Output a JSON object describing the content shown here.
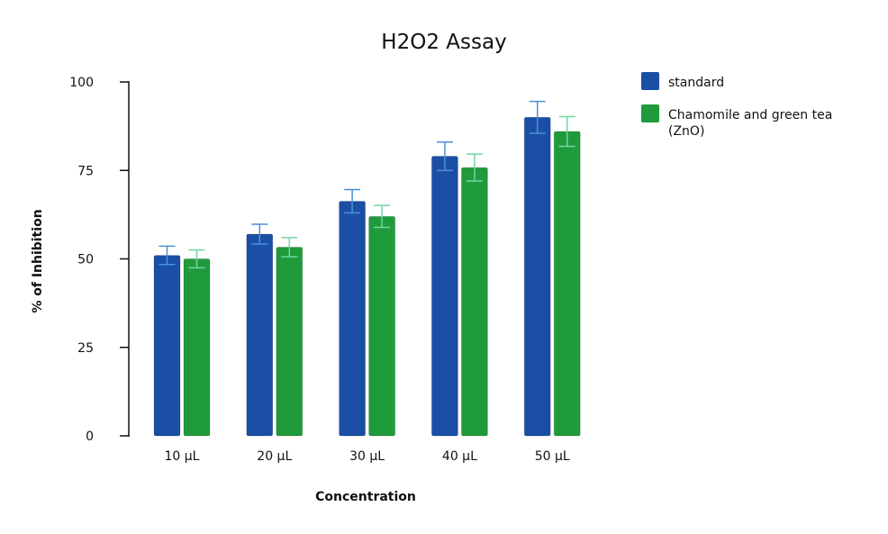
{
  "chart_data": {
    "type": "bar",
    "title": "H2O2 Assay",
    "xlabel": "Concentration",
    "ylabel": "% of Inhibition",
    "categories": [
      "10 µL",
      "20 µL",
      "30 µL",
      "40 µL",
      "50 µL"
    ],
    "ylim": [
      0,
      100
    ],
    "yticks": [
      0,
      25,
      50,
      75,
      100
    ],
    "grid": false,
    "legend_position": "top-right",
    "series": [
      {
        "name": "standard",
        "color": "#1b4fa6",
        "error_color": "#4d90d8",
        "values": [
          51,
          57,
          66.3,
          79,
          90
        ],
        "errors": [
          2.6,
          2.8,
          3.3,
          4.0,
          4.5
        ]
      },
      {
        "name": "Chamomile and green tea (ZnO)",
        "color": "#1f9b3c",
        "error_color": "#72d6a0",
        "values": [
          50,
          53.3,
          62,
          75.8,
          86
        ],
        "errors": [
          2.5,
          2.7,
          3.1,
          3.8,
          4.2
        ]
      }
    ]
  }
}
